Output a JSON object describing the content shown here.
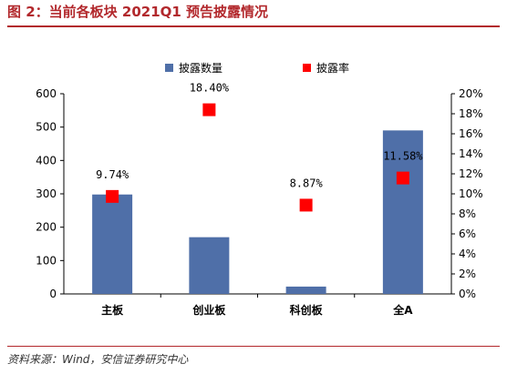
{
  "header": {
    "title": "图 2：当前各板块 2021Q1 预告披露情况"
  },
  "footer": {
    "source": "资料来源：Wind，安信证券研究中心"
  },
  "colors": {
    "bar": "#4f6fa8",
    "marker": "#ff0000",
    "accent": "#b2282c"
  },
  "chart_data": {
    "type": "bar",
    "categories": [
      "主板",
      "创业板",
      "科创板",
      "全A"
    ],
    "series": [
      {
        "name": "披露数量",
        "type": "bar",
        "axis": "left",
        "values": [
          298,
          170,
          22,
          490
        ]
      },
      {
        "name": "披露率",
        "type": "scatter",
        "axis": "right",
        "values": [
          9.74,
          18.4,
          8.87,
          11.58
        ],
        "labels": [
          "9.74%",
          "18.40%",
          "8.87%",
          "11.58%"
        ]
      }
    ],
    "y_left": {
      "min": 0,
      "max": 600,
      "step": 100,
      "ticks": [
        "0",
        "100",
        "200",
        "300",
        "400",
        "500",
        "600"
      ]
    },
    "y_right": {
      "min": 0,
      "max": 20,
      "step": 2,
      "ticks": [
        "0%",
        "2%",
        "4%",
        "6%",
        "8%",
        "10%",
        "12%",
        "14%",
        "16%",
        "18%",
        "20%"
      ]
    },
    "legend": {
      "position": "top",
      "items": [
        "披露数量",
        "披露率"
      ]
    },
    "grid": false
  }
}
